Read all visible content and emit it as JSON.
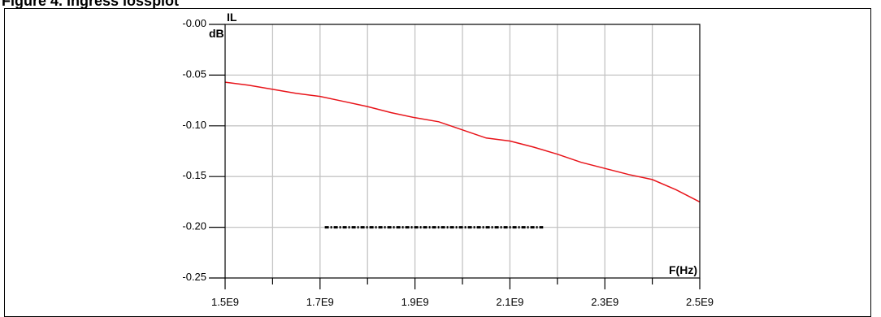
{
  "header": {
    "title": "Figure 4. Ingress lossplot"
  },
  "chart_data": {
    "type": "line",
    "title": "",
    "xlabel": "F(Hz)",
    "ylabel_top": "IL",
    "ylabel_unit": "dB",
    "xlim": [
      1500000000.0,
      2500000000.0
    ],
    "ylim": [
      -0.25,
      0.0
    ],
    "x_ticks": [
      {
        "value": 1500000000.0,
        "label": "1.5E9"
      },
      {
        "value": 1700000000.0,
        "label": "1.7E9"
      },
      {
        "value": 1900000000.0,
        "label": "1.9E9"
      },
      {
        "value": 2100000000.0,
        "label": "2.1E9"
      },
      {
        "value": 2300000000.0,
        "label": "2.3E9"
      },
      {
        "value": 2500000000.0,
        "label": "2.5E9"
      }
    ],
    "y_ticks": [
      {
        "value": 0.0,
        "label": "-0.00"
      },
      {
        "value": -0.05,
        "label": "-0.05"
      },
      {
        "value": -0.1,
        "label": "-0.10"
      },
      {
        "value": -0.15,
        "label": "-0.15"
      },
      {
        "value": -0.2,
        "label": "-0.20"
      },
      {
        "value": -0.25,
        "label": "-0.25"
      }
    ],
    "grid": true,
    "series": [
      {
        "color": "#e8141a",
        "style": "solid",
        "points": [
          [
            1500000000.0,
            -0.057
          ],
          [
            1550000000.0,
            -0.06
          ],
          [
            1600000000.0,
            -0.064
          ],
          [
            1650000000.0,
            -0.068
          ],
          [
            1700000000.0,
            -0.071
          ],
          [
            1750000000.0,
            -0.076
          ],
          [
            1800000000.0,
            -0.081
          ],
          [
            1850000000.0,
            -0.087
          ],
          [
            1900000000.0,
            -0.092
          ],
          [
            1950000000.0,
            -0.096
          ],
          [
            2000000000.0,
            -0.104
          ],
          [
            2050000000.0,
            -0.112
          ],
          [
            2100000000.0,
            -0.115
          ],
          [
            2150000000.0,
            -0.121
          ],
          [
            2200000000.0,
            -0.128
          ],
          [
            2250000000.0,
            -0.136
          ],
          [
            2300000000.0,
            -0.142
          ],
          [
            2350000000.0,
            -0.148
          ],
          [
            2400000000.0,
            -0.153
          ],
          [
            2450000000.0,
            -0.163
          ],
          [
            2500000000.0,
            -0.175
          ]
        ]
      },
      {
        "color": "#000000",
        "style": "dash-dot",
        "points": [
          [
            1710000000.0,
            -0.2
          ],
          [
            2170000000.0,
            -0.2
          ]
        ]
      }
    ]
  }
}
